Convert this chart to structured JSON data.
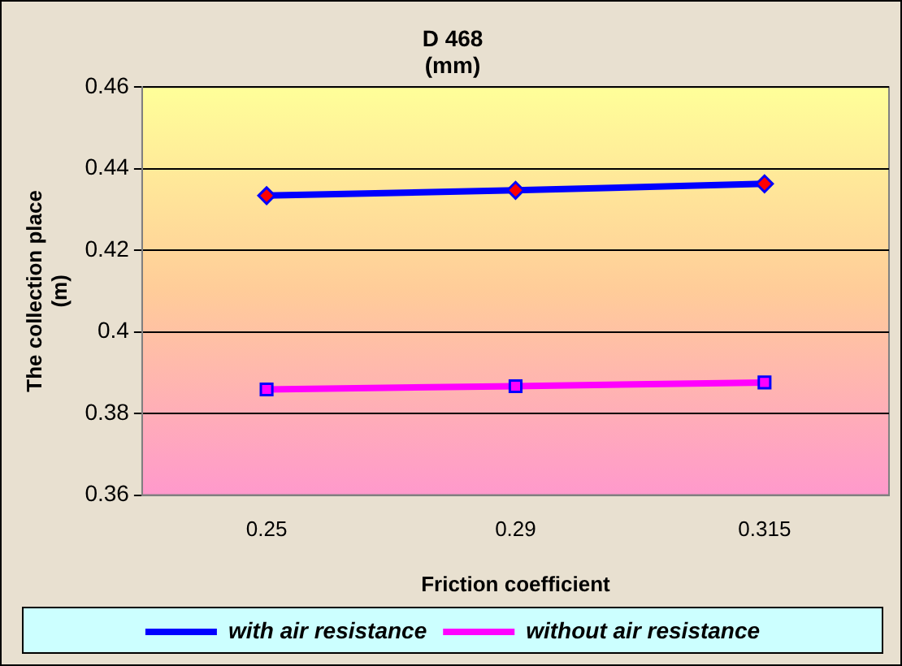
{
  "chart_data": {
    "type": "line",
    "title": [
      "D 468",
      "(mm)"
    ],
    "xlabel": "Friction coefficient",
    "ylabel": [
      "The collection place",
      "(m)"
    ],
    "categories": [
      "0.25",
      "0.29",
      "0.315"
    ],
    "series": [
      {
        "name": "with air resistance",
        "color": "#0000ff",
        "marker": "diamond",
        "values": [
          0.4334,
          0.4347,
          0.4363
        ]
      },
      {
        "name": "without air resistance",
        "color": "#ff00ff",
        "marker": "square",
        "values": [
          0.3859,
          0.3867,
          0.3876
        ]
      }
    ],
    "ylim": [
      0.36,
      0.46
    ],
    "yticks": [
      0.36,
      0.38,
      0.4,
      0.42,
      0.44,
      0.46
    ],
    "grid": "y",
    "legend": "bottom"
  }
}
